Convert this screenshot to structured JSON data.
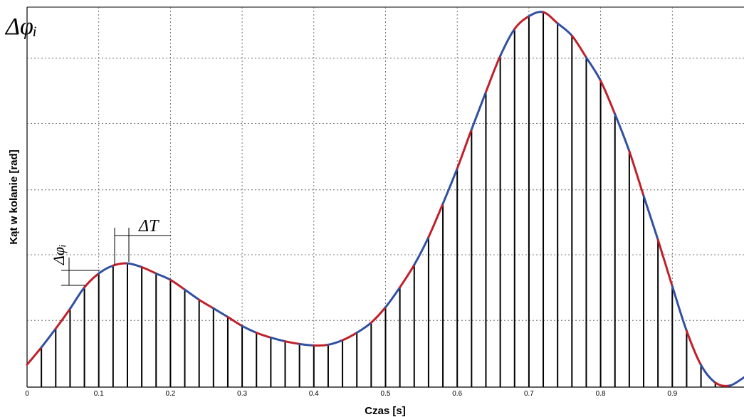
{
  "chart_data": {
    "type": "line",
    "title": "",
    "xlabel": "Czas [s]",
    "ylabel": "Kąt w kolanie [rad]",
    "xlim": [
      0,
      1.0
    ],
    "ylim": [
      0,
      1.0
    ],
    "x_ticks": [
      "0",
      "0.1",
      "0.2",
      "0.3",
      "0.4",
      "0.5",
      "0.6",
      "0.7",
      "0.8",
      "0.9"
    ],
    "x_tick_values": [
      0,
      0.1,
      0.2,
      0.3,
      0.4,
      0.5,
      0.6,
      0.7,
      0.8,
      0.9
    ],
    "y_grid_values": [
      0.178,
      0.353,
      0.526,
      0.703,
      0.877
    ],
    "grid": true,
    "y_tick_labels_shown": false,
    "sample_step": 0.02,
    "series": [
      {
        "color_a": "#c0202a",
        "color_b": "#3050a0",
        "x": [
          0,
          0.02,
          0.04,
          0.06,
          0.08,
          0.1,
          0.12,
          0.14,
          0.16,
          0.18,
          0.2,
          0.22,
          0.24,
          0.26,
          0.28,
          0.3,
          0.32,
          0.34,
          0.36,
          0.38,
          0.4,
          0.42,
          0.44,
          0.46,
          0.48,
          0.5,
          0.52,
          0.54,
          0.56,
          0.58,
          0.6,
          0.62,
          0.64,
          0.66,
          0.68,
          0.7,
          0.72,
          0.74,
          0.76,
          0.78,
          0.8,
          0.82,
          0.84,
          0.86,
          0.88,
          0.9,
          0.92,
          0.94,
          0.96,
          0.98,
          1.0
        ],
        "y": [
          0.06,
          0.106,
          0.156,
          0.209,
          0.266,
          0.303,
          0.324,
          0.33,
          0.32,
          0.303,
          0.286,
          0.26,
          0.233,
          0.21,
          0.187,
          0.163,
          0.145,
          0.132,
          0.122,
          0.115,
          0.111,
          0.113,
          0.125,
          0.145,
          0.172,
          0.213,
          0.266,
          0.326,
          0.4,
          0.489,
          0.583,
          0.687,
          0.787,
          0.883,
          0.955,
          0.989,
          1.0,
          0.97,
          0.937,
          0.879,
          0.817,
          0.728,
          0.629,
          0.51,
          0.393,
          0.269,
          0.15,
          0.059,
          0.012,
          0.004,
          0.026
        ]
      }
    ],
    "annotations": [
      {
        "text": "ΔT"
      },
      {
        "text": "Δφᵢ",
        "role": "corner"
      },
      {
        "text": "Δφᵢ",
        "role": "rotated"
      }
    ]
  }
}
